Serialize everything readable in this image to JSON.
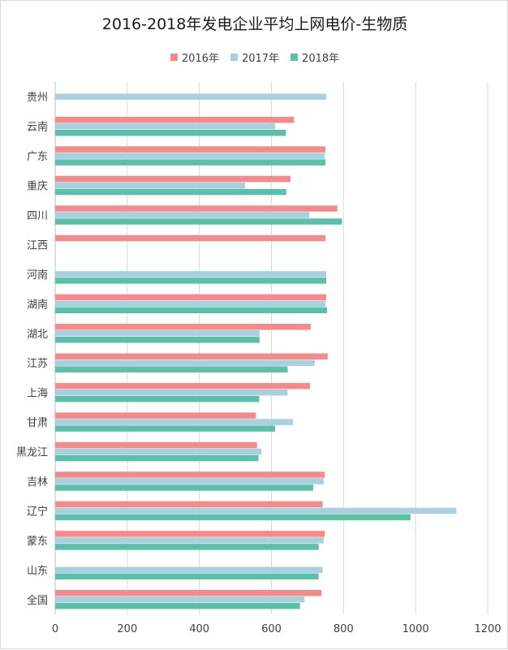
{
  "chart_data": {
    "type": "bar",
    "orientation": "horizontal",
    "title": "2016-2018年发电企业平均上网电价-生物质",
    "categories": [
      "贵州",
      "云南",
      "广东",
      "重庆",
      "四川",
      "江西",
      "河南",
      "湖南",
      "湖北",
      "江苏",
      "上海",
      "甘肃",
      "黑龙江",
      "吉林",
      "辽宁",
      "蒙东",
      "山东",
      "全国"
    ],
    "series": [
      {
        "name": "2016年",
        "color": "#f48a8a",
        "values": [
          null,
          663,
          750,
          653,
          783,
          750,
          null,
          752,
          709,
          756,
          707,
          557,
          560,
          748,
          742,
          748,
          null,
          739
        ]
      },
      {
        "name": "2017年",
        "color": "#a8d1e0",
        "values": [
          752,
          610,
          748,
          527,
          705,
          null,
          752,
          750,
          567,
          720,
          645,
          660,
          572,
          745,
          1113,
          745,
          742,
          692
        ]
      },
      {
        "name": "2018年",
        "color": "#5cbfa8",
        "values": [
          null,
          640,
          750,
          641,
          796,
          null,
          752,
          754,
          567,
          645,
          566,
          610,
          564,
          716,
          986,
          731,
          731,
          679
        ]
      }
    ],
    "xlim": [
      0,
      1200
    ],
    "xticks": [
      0,
      200,
      400,
      600,
      800,
      1000,
      1200
    ],
    "grid": true,
    "legend_position": "top"
  }
}
